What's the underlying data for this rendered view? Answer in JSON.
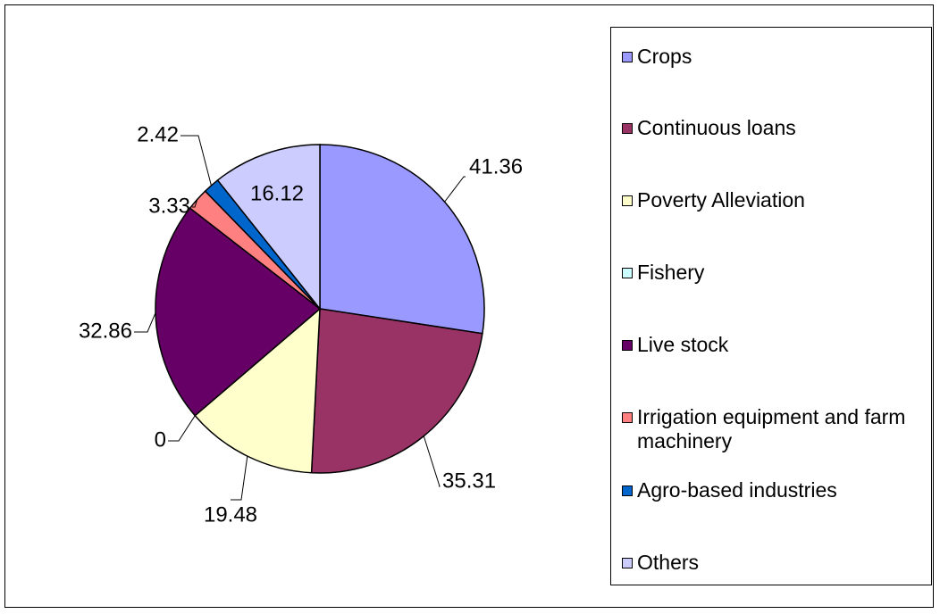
{
  "chart_data": {
    "type": "pie",
    "categories": [
      "Crops",
      "Continuous loans",
      "Poverty Alleviation",
      "Fishery",
      "Live stock",
      "Irrigation equipment and farm machinery",
      "Agro-based industries",
      "Others"
    ],
    "values": [
      41.36,
      35.31,
      19.48,
      0,
      32.86,
      3.33,
      2.42,
      16.12
    ],
    "colors": [
      "#9999ff",
      "#993366",
      "#ffffcc",
      "#ccffff",
      "#660066",
      "#ff8080",
      "#0066cc",
      "#ccccff"
    ],
    "legend": "right"
  }
}
